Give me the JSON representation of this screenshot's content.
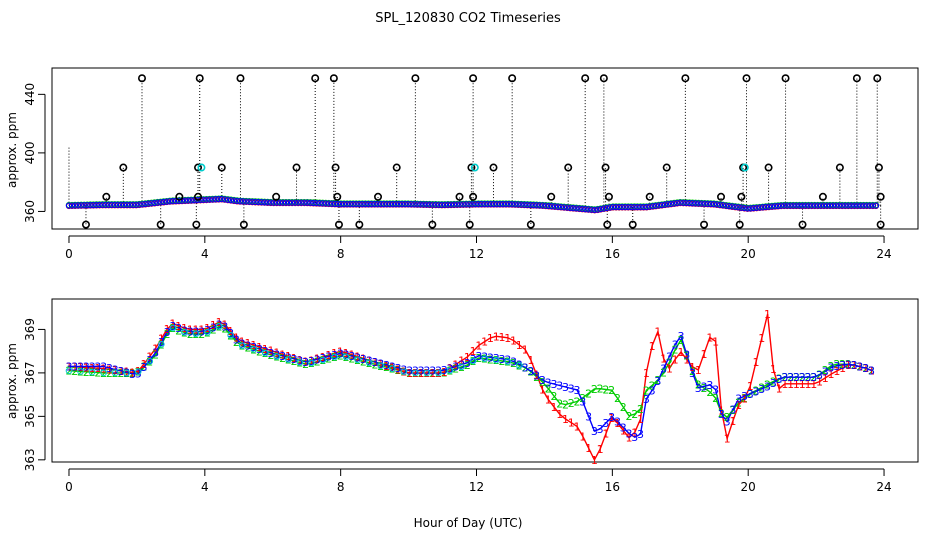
{
  "title": "SPL_120830  CO2 Timeseries",
  "xlabel": "Hour of Day (UTC)",
  "colors": {
    "s1": "#ff0000",
    "s2": "#00cc00",
    "s3": "#0000ff",
    "cyan": "#00cccc",
    "black": "#000000"
  },
  "chart_data": [
    {
      "type": "scatter",
      "panel": "top",
      "ylabel": "approx. ppm",
      "xlim": [
        -0.5,
        25
      ],
      "ylim": [
        348,
        458
      ],
      "xticks": [
        0,
        4,
        8,
        12,
        16,
        20,
        24
      ],
      "yticks": [
        360,
        400,
        440
      ],
      "baseline": [
        [
          0,
          364
        ],
        [
          1,
          364.5
        ],
        [
          2,
          364.5
        ],
        [
          3,
          367
        ],
        [
          4,
          368
        ],
        [
          4.5,
          368.5
        ],
        [
          5,
          367
        ],
        [
          6,
          366
        ],
        [
          7,
          366
        ],
        [
          8,
          365
        ],
        [
          9,
          365
        ],
        [
          10,
          365
        ],
        [
          11,
          364.5
        ],
        [
          12,
          365
        ],
        [
          13,
          365
        ],
        [
          14,
          364
        ],
        [
          15,
          362
        ],
        [
          15.5,
          361
        ],
        [
          16,
          363
        ],
        [
          17,
          363
        ],
        [
          18,
          366
        ],
        [
          19,
          365
        ],
        [
          20,
          362
        ],
        [
          21,
          364
        ],
        [
          22,
          364
        ],
        [
          23,
          364
        ],
        [
          23.8,
          364
        ]
      ],
      "high_points": [
        2.15,
        3.85,
        5.05,
        7.25,
        7.8,
        10.2,
        11.9,
        13.05,
        15.2,
        15.75,
        18.15,
        19.95,
        21.1,
        23.2,
        23.8
      ],
      "mid_points": [
        1.6,
        3.8,
        4.5,
        6.7,
        7.85,
        9.65,
        11.85,
        12.5,
        14.7,
        15.8,
        17.6,
        19.85,
        20.6,
        22.7,
        23.85
      ],
      "low_points": [
        0.5,
        2.7,
        3.75,
        5.15,
        7.95,
        8.55,
        10.7,
        11.8,
        13.6,
        15.85,
        16.6,
        18.7,
        19.75,
        21.6,
        23.9
      ],
      "small_points": [
        1.1,
        3.25,
        3.8,
        6.1,
        7.9,
        9.1,
        11.5,
        11.9,
        14.2,
        15.9,
        17.1,
        19.2,
        19.8,
        22.2,
        23.9
      ],
      "high_value": 451,
      "mid_value": 390,
      "low_value": 351,
      "small_value": 370
    },
    {
      "type": "line",
      "panel": "bottom",
      "ylabel": "approx. ppm",
      "xlim": [
        -0.5,
        25
      ],
      "ylim": [
        362.9,
        370.4
      ],
      "xticks": [
        0,
        4,
        8,
        12,
        16,
        20,
        24
      ],
      "yticks": [
        363,
        365,
        367,
        369
      ],
      "series": [
        {
          "name": "1",
          "points": [
            [
              0,
              367.3
            ],
            [
              1,
              367.2
            ],
            [
              2,
              367
            ],
            [
              2.5,
              368
            ],
            [
              3,
              369.3
            ],
            [
              3.5,
              369
            ],
            [
              4,
              369
            ],
            [
              4.5,
              369.4
            ],
            [
              5,
              368.5
            ],
            [
              6,
              368
            ],
            [
              7,
              367.5
            ],
            [
              8,
              368
            ],
            [
              9,
              367.5
            ],
            [
              10,
              367
            ],
            [
              11,
              367
            ],
            [
              11.8,
              367.8
            ],
            [
              12,
              368.2
            ],
            [
              12.5,
              368.7
            ],
            [
              13,
              368.6
            ],
            [
              13.5,
              368
            ],
            [
              14,
              366
            ],
            [
              14.5,
              365
            ],
            [
              15,
              364.5
            ],
            [
              15.5,
              362.9
            ],
            [
              16,
              365
            ],
            [
              16.5,
              364
            ],
            [
              16.8,
              364.5
            ],
            [
              17,
              367
            ],
            [
              17.3,
              369.2
            ],
            [
              17.6,
              367
            ],
            [
              18,
              368
            ],
            [
              18.5,
              367
            ],
            [
              19,
              369.2
            ],
            [
              19.3,
              363.6
            ],
            [
              19.7,
              365.5
            ],
            [
              20,
              366
            ],
            [
              20.6,
              369.9
            ],
            [
              20.8,
              366
            ],
            [
              21,
              366.5
            ],
            [
              22,
              366.5
            ],
            [
              22.5,
              367
            ],
            [
              23,
              367.4
            ],
            [
              23.5,
              367.2
            ],
            [
              23.8,
              367
            ]
          ]
        },
        {
          "name": "2",
          "points": [
            [
              0,
              367.1
            ],
            [
              1,
              367
            ],
            [
              2,
              367
            ],
            [
              2.5,
              367.7
            ],
            [
              3,
              369.1
            ],
            [
              3.5,
              368.8
            ],
            [
              4,
              368.8
            ],
            [
              4.5,
              369.2
            ],
            [
              5,
              368.3
            ],
            [
              6,
              367.8
            ],
            [
              7,
              367.4
            ],
            [
              8,
              367.8
            ],
            [
              9,
              367.4
            ],
            [
              10,
              367
            ],
            [
              11,
              367
            ],
            [
              11.8,
              367.4
            ],
            [
              12,
              367.7
            ],
            [
              12.5,
              367.6
            ],
            [
              13,
              367.5
            ],
            [
              13.5,
              367.2
            ],
            [
              14,
              366.5
            ],
            [
              14.5,
              365.5
            ],
            [
              15,
              365.7
            ],
            [
              15.5,
              366.3
            ],
            [
              16,
              366.2
            ],
            [
              16.5,
              365
            ],
            [
              16.8,
              365.2
            ],
            [
              17,
              366.2
            ],
            [
              17.3,
              366.6
            ],
            [
              17.6,
              367.2
            ],
            [
              18,
              368.6
            ],
            [
              18.5,
              366.5
            ],
            [
              19,
              366
            ],
            [
              19.3,
              364.8
            ],
            [
              19.7,
              365.6
            ],
            [
              20,
              366
            ],
            [
              20.6,
              366.5
            ],
            [
              21,
              366.8
            ],
            [
              22,
              366.8
            ],
            [
              22.5,
              367.4
            ],
            [
              23,
              367.4
            ],
            [
              23.5,
              367.2
            ],
            [
              23.8,
              367
            ]
          ]
        },
        {
          "name": "3",
          "points": [
            [
              0,
              367.3
            ],
            [
              1,
              367.3
            ],
            [
              2,
              366.9
            ],
            [
              2.5,
              367.8
            ],
            [
              3,
              369.2
            ],
            [
              3.5,
              368.9
            ],
            [
              4,
              368.9
            ],
            [
              4.5,
              369.3
            ],
            [
              5,
              368.4
            ],
            [
              6,
              367.9
            ],
            [
              7,
              367.5
            ],
            [
              8,
              367.9
            ],
            [
              9,
              367.5
            ],
            [
              10,
              367.1
            ],
            [
              11,
              367.1
            ],
            [
              11.8,
              367.5
            ],
            [
              12,
              367.8
            ],
            [
              12.5,
              367.7
            ],
            [
              13,
              367.6
            ],
            [
              13.5,
              367.2
            ],
            [
              14,
              366.6
            ],
            [
              14.5,
              366.4
            ],
            [
              15,
              366.2
            ],
            [
              15.5,
              364.2
            ],
            [
              16,
              365
            ],
            [
              16.5,
              364.2
            ],
            [
              16.8,
              363.9
            ],
            [
              17,
              365.8
            ],
            [
              17.3,
              366.5
            ],
            [
              17.6,
              367.5
            ],
            [
              18,
              368.8
            ],
            [
              18.5,
              366.3
            ],
            [
              19,
              366.5
            ],
            [
              19.3,
              364.5
            ],
            [
              19.7,
              365.8
            ],
            [
              20,
              366
            ],
            [
              20.6,
              366.4
            ],
            [
              21,
              366.8
            ],
            [
              22,
              366.8
            ],
            [
              22.5,
              367.3
            ],
            [
              23,
              367.4
            ],
            [
              23.5,
              367.2
            ],
            [
              23.8,
              367
            ]
          ]
        }
      ]
    }
  ]
}
